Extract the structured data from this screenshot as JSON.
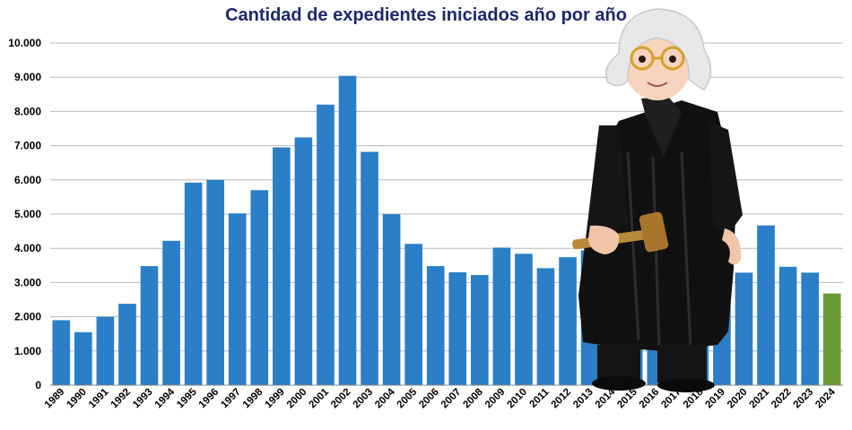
{
  "chart_data": {
    "type": "bar",
    "title": "Cantidad de expedientes iniciados año por año",
    "xlabel": "",
    "ylabel": "",
    "categories": [
      "1989",
      "1990",
      "1991",
      "1992",
      "1993",
      "1994",
      "1995",
      "1996",
      "1997",
      "1998",
      "1999",
      "2000",
      "2001",
      "2002",
      "2003",
      "2004",
      "2005",
      "2006",
      "2007",
      "2008",
      "2009",
      "2010",
      "2011",
      "2012",
      "2013",
      "2014",
      "2015",
      "2016",
      "2017",
      "2018",
      "2019",
      "2020",
      "2021",
      "2022",
      "2023",
      "2024"
    ],
    "values": [
      1900,
      1550,
      2000,
      2380,
      3480,
      4220,
      5920,
      6000,
      5020,
      5700,
      6950,
      7240,
      8200,
      9040,
      6820,
      5000,
      4130,
      3480,
      3300,
      3220,
      4020,
      3840,
      3420,
      3740,
      3940,
      3860,
      3800,
      3680,
      4140,
      4560,
      5400,
      3290,
      4670,
      3460,
      3290,
      2680
    ],
    "ylim": [
      0,
      10000
    ],
    "yticks": [
      "0",
      "1.000",
      "2.000",
      "3.000",
      "4.000",
      "5.000",
      "6.000",
      "7.000",
      "8.000",
      "9.000",
      "10.000"
    ],
    "grid": true,
    "legend": "none",
    "colors": {
      "bar": "#2a7fc6",
      "highlight": "#6a9a34",
      "grid": "#b8b8b8",
      "title": "#1b2a6b"
    },
    "highlight_category": "2024"
  },
  "image": {
    "icon": "judge-playmobil-figure-with-gavel"
  }
}
